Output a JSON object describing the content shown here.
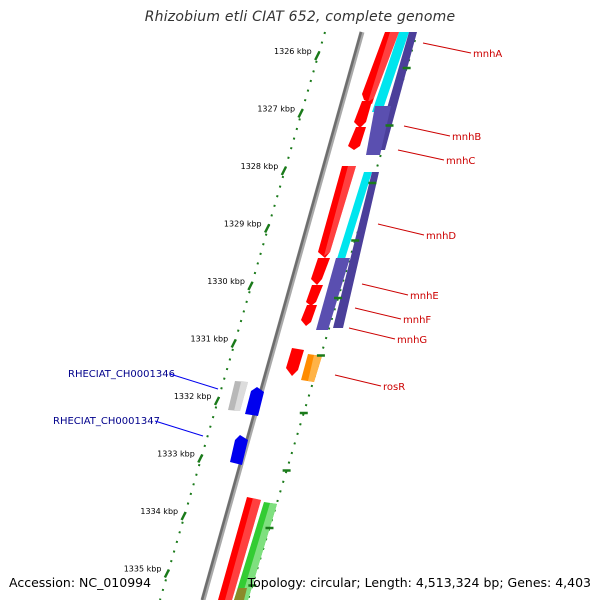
{
  "title": "Rhizobium etli CIAT 652, complete genome",
  "footer": {
    "accession": "Accession: NC_010994",
    "summary": "Topology: circular; Length: 4,513,324 bp; Genes: 4,403"
  },
  "colors": {
    "backbone": "#7a7a7a",
    "tick": "#1a7a1a",
    "label_red": "#cc0000",
    "label_blue": "#00008b",
    "gene_red": "#ff0000",
    "gene_blue": "#0000ee",
    "gene_gray": "#b8b8b8",
    "gene_orange": "#ff8c00",
    "gene_green": "#33cc33",
    "feature_cyan": "#00e5ee",
    "feature_purple": "#4b3f9a"
  },
  "ticks": [
    {
      "label": "1326 kbp"
    },
    {
      "label": "1327 kbp"
    },
    {
      "label": "1328 kbp"
    },
    {
      "label": "1329 kbp"
    },
    {
      "label": "1330 kbp"
    },
    {
      "label": "1331 kbp"
    },
    {
      "label": "1332 kbp"
    },
    {
      "label": "1333 kbp"
    },
    {
      "label": "1334 kbp"
    },
    {
      "label": "1335 kbp"
    }
  ],
  "gene_labels_right": [
    "mnhA",
    "mnhB",
    "mnhC",
    "mnhD",
    "mnhE",
    "mnhF",
    "mnhG",
    "rosR"
  ],
  "gene_labels_left": [
    "RHECIAT_CH0001346",
    "RHECIAT_CH0001347"
  ]
}
